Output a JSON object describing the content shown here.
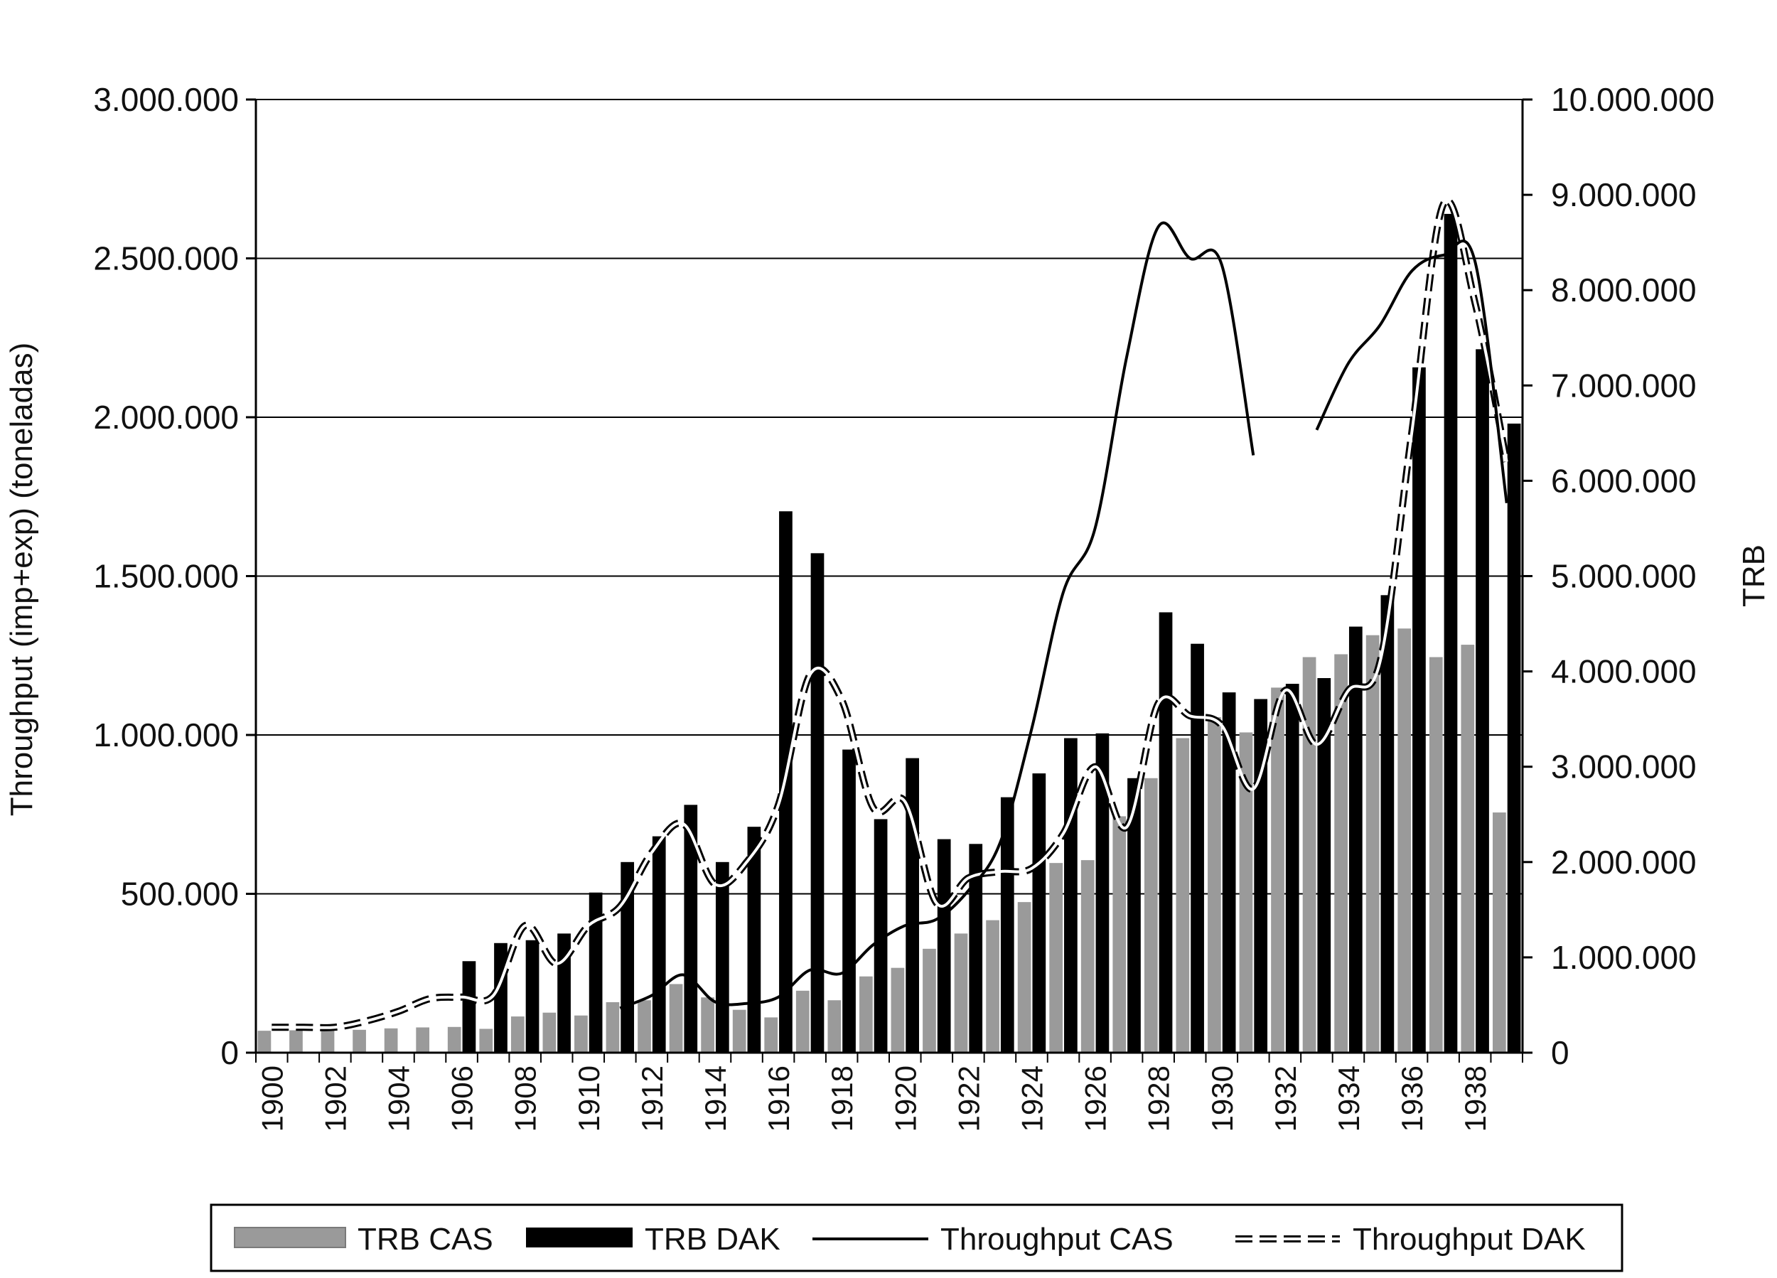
{
  "chart_data": {
    "type": "bar",
    "x": [
      1900,
      1901,
      1902,
      1903,
      1904,
      1905,
      1906,
      1907,
      1908,
      1909,
      1910,
      1911,
      1912,
      1913,
      1914,
      1915,
      1916,
      1917,
      1918,
      1919,
      1920,
      1921,
      1922,
      1923,
      1924,
      1925,
      1926,
      1927,
      1928,
      1929,
      1930,
      1931,
      1932,
      1933,
      1934,
      1935,
      1936,
      1937,
      1938,
      1939
    ],
    "x_tick_labels": [
      "1900",
      "1902",
      "1904",
      "1906",
      "1908",
      "1910",
      "1912",
      "1914",
      "1916",
      "1918",
      "1920",
      "1922",
      "1924",
      "1926",
      "1928",
      "1930",
      "1932",
      "1934",
      "1936",
      "1938"
    ],
    "xlim": [
      1900,
      1939
    ],
    "ylabel": "Throughput (imp+exp) (toneladas)",
    "y_tick_labels": [
      "0",
      "500.000",
      "1.000.000",
      "1.500.000",
      "2.000.000",
      "2.500.000",
      "3.000.000"
    ],
    "ylim": [
      0,
      3000000
    ],
    "y2label": "TRB",
    "y2_tick_labels": [
      "0",
      "1.000.000",
      "2.000.000",
      "3.000.000",
      "4.000.000",
      "5.000.000",
      "6.000.000",
      "7.000.000",
      "8.000.000",
      "9.000.000",
      "10.000.000"
    ],
    "y2lim": [
      0,
      10000000
    ],
    "grid": "horizontal",
    "legend_position": "bottom",
    "series": [
      {
        "name": "TRB CAS",
        "kind": "bar",
        "axis": "right",
        "color": "#9a9a9a",
        "values": [
          230000,
          235000,
          235000,
          240000,
          255000,
          265000,
          270000,
          250000,
          380000,
          420000,
          390000,
          530000,
          550000,
          720000,
          580000,
          450000,
          370000,
          650000,
          550000,
          800000,
          890000,
          1090000,
          1250000,
          1390000,
          1580000,
          1990000,
          2020000,
          2480000,
          2880000,
          3300000,
          3520000,
          3360000,
          3830000,
          4150000,
          4180000,
          4380000,
          4450000,
          4150000,
          4280000,
          2520000
        ]
      },
      {
        "name": "TRB DAK",
        "kind": "bar",
        "axis": "right",
        "color": "#000000",
        "values": [
          null,
          null,
          null,
          null,
          null,
          null,
          960000,
          1150000,
          1180000,
          1250000,
          1680000,
          2000000,
          2270000,
          2600000,
          2000000,
          2370000,
          5680000,
          5240000,
          3180000,
          2450000,
          3090000,
          2240000,
          2190000,
          2680000,
          2930000,
          3300000,
          3350000,
          2880000,
          4620000,
          4290000,
          3780000,
          3710000,
          3870000,
          3930000,
          4470000,
          4800000,
          7190000,
          8800000,
          7380000,
          6600000
        ]
      },
      {
        "name": "Throughput CAS",
        "kind": "line",
        "axis": "left",
        "color": "#000000",
        "values": [
          null,
          null,
          null,
          null,
          null,
          null,
          null,
          null,
          null,
          null,
          null,
          140000,
          180000,
          245000,
          160000,
          155000,
          175000,
          260000,
          250000,
          340000,
          400000,
          420000,
          510000,
          660000,
          1020000,
          1450000,
          1650000,
          2190000,
          2600000,
          2500000,
          2480000,
          1880000,
          null,
          1960000,
          2170000,
          2290000,
          2460000,
          2510000,
          2490000,
          1730000
        ]
      },
      {
        "name": "Throughput DAK",
        "kind": "line",
        "axis": "left",
        "color": "#000000",
        "values": [
          80000,
          80000,
          80000,
          100000,
          130000,
          170000,
          175000,
          180000,
          400000,
          280000,
          400000,
          460000,
          630000,
          720000,
          530000,
          600000,
          780000,
          1190000,
          1110000,
          770000,
          790000,
          470000,
          550000,
          570000,
          580000,
          690000,
          900000,
          710000,
          1100000,
          1060000,
          1030000,
          830000,
          1140000,
          970000,
          1140000,
          1230000,
          1950000,
          2670000,
          2360000,
          1860000
        ]
      }
    ]
  }
}
